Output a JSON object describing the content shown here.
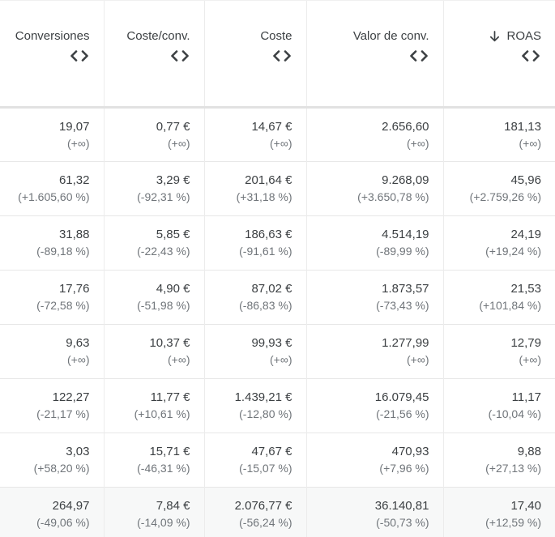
{
  "table": {
    "sort": {
      "column": "ROAS",
      "direction": "descending"
    },
    "columns": [
      {
        "label": "Conversiones"
      },
      {
        "label": "Coste/conv."
      },
      {
        "label": "Coste"
      },
      {
        "label": "Valor de conv."
      },
      {
        "label": "ROAS"
      }
    ],
    "rows": [
      {
        "cells": [
          {
            "value": "19,07",
            "delta": "(+∞)"
          },
          {
            "value": "0,77 €",
            "delta": "(+∞)"
          },
          {
            "value": "14,67 €",
            "delta": "(+∞)"
          },
          {
            "value": "2.656,60",
            "delta": "(+∞)"
          },
          {
            "value": "181,13",
            "delta": "(+∞)"
          }
        ]
      },
      {
        "cells": [
          {
            "value": "61,32",
            "delta": "(+1.605,60 %)"
          },
          {
            "value": "3,29 €",
            "delta": "(-92,31 %)"
          },
          {
            "value": "201,64 €",
            "delta": "(+31,18 %)"
          },
          {
            "value": "9.268,09",
            "delta": "(+3.650,78 %)"
          },
          {
            "value": "45,96",
            "delta": "(+2.759,26 %)"
          }
        ]
      },
      {
        "cells": [
          {
            "value": "31,88",
            "delta": "(-89,18 %)"
          },
          {
            "value": "5,85 €",
            "delta": "(-22,43 %)"
          },
          {
            "value": "186,63 €",
            "delta": "(-91,61 %)"
          },
          {
            "value": "4.514,19",
            "delta": "(-89,99 %)"
          },
          {
            "value": "24,19",
            "delta": "(+19,24 %)"
          }
        ]
      },
      {
        "cells": [
          {
            "value": "17,76",
            "delta": "(-72,58 %)"
          },
          {
            "value": "4,90 €",
            "delta": "(-51,98 %)"
          },
          {
            "value": "87,02 €",
            "delta": "(-86,83 %)"
          },
          {
            "value": "1.873,57",
            "delta": "(-73,43 %)"
          },
          {
            "value": "21,53",
            "delta": "(+101,84 %)"
          }
        ]
      },
      {
        "cells": [
          {
            "value": "9,63",
            "delta": "(+∞)"
          },
          {
            "value": "10,37 €",
            "delta": "(+∞)"
          },
          {
            "value": "99,93 €",
            "delta": "(+∞)"
          },
          {
            "value": "1.277,99",
            "delta": "(+∞)"
          },
          {
            "value": "12,79",
            "delta": "(+∞)"
          }
        ]
      },
      {
        "cells": [
          {
            "value": "122,27",
            "delta": "(-21,17 %)"
          },
          {
            "value": "11,77 €",
            "delta": "(+10,61 %)"
          },
          {
            "value": "1.439,21 €",
            "delta": "(-12,80 %)"
          },
          {
            "value": "16.079,45",
            "delta": "(-21,56 %)"
          },
          {
            "value": "11,17",
            "delta": "(-10,04 %)"
          }
        ]
      },
      {
        "cells": [
          {
            "value": "3,03",
            "delta": "(+58,20 %)"
          },
          {
            "value": "15,71 €",
            "delta": "(-46,31 %)"
          },
          {
            "value": "47,67 €",
            "delta": "(-15,07 %)"
          },
          {
            "value": "470,93",
            "delta": "(+7,96 %)"
          },
          {
            "value": "9,88",
            "delta": "(+27,13 %)"
          }
        ]
      },
      {
        "highlighted": true,
        "cells": [
          {
            "value": "264,97",
            "delta": "(-49,06 %)"
          },
          {
            "value": "7,84 €",
            "delta": "(-14,09 %)"
          },
          {
            "value": "2.076,77 €",
            "delta": "(-56,24 %)"
          },
          {
            "value": "36.140,81",
            "delta": "(-50,73 %)"
          },
          {
            "value": "17,40",
            "delta": "(+12,59 %)"
          }
        ]
      }
    ]
  },
  "colors": {
    "value_text": "#3c4043",
    "delta_text": "#70757a",
    "header_text": "#3c4043",
    "row_divider": "#e7e7e7",
    "column_divider": "#ececec",
    "header_divider": "#e2e2e2",
    "highlight_row_bg": "#f7f8f8"
  }
}
